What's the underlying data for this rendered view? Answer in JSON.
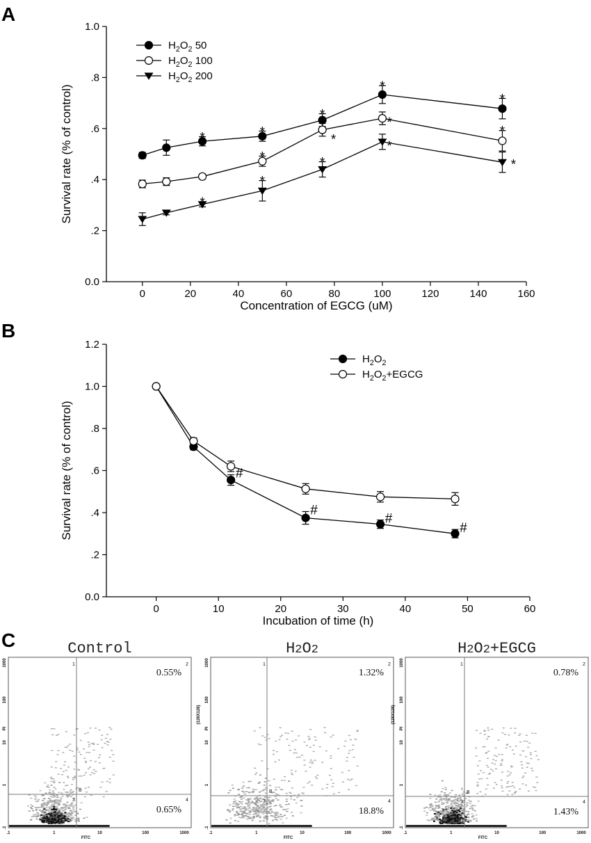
{
  "panels": {
    "a": "A",
    "b": "B",
    "c": "C"
  },
  "chart_data": [
    {
      "type": "line",
      "xlabel": "Concentration of EGCG (uM)",
      "ylabel": "Survival rate (% of control)",
      "xlim": [
        -15,
        160
      ],
      "ylim": [
        0,
        1.0
      ],
      "xticks": [
        0,
        20,
        40,
        60,
        80,
        100,
        120,
        140,
        160
      ],
      "xticklabels": [
        "0",
        "20",
        "40",
        "60",
        "80",
        "100",
        "120",
        "140",
        "160"
      ],
      "yticks": [
        0,
        0.2,
        0.4,
        0.6,
        0.8,
        1.0
      ],
      "yticklabels": [
        "0.0",
        ".2",
        ".4",
        ".6",
        ".8",
        "1.0"
      ],
      "legend": "top-left",
      "grid": false,
      "x": [
        0,
        10,
        25,
        50,
        75,
        100,
        150
      ],
      "series": [
        {
          "name_main": "H",
          "name_sub1": "2",
          "name_mid": "O",
          "name_sub2": "2",
          "name_tail": " 50",
          "marker": "filled-circle",
          "values": [
            0.495,
            0.525,
            0.55,
            0.57,
            0.633,
            0.733,
            0.678
          ],
          "err": [
            0.012,
            0.03,
            0.018,
            0.02,
            0.025,
            0.035,
            0.04
          ],
          "sig": [
            "",
            "",
            "*",
            "*",
            "*",
            "*",
            "*"
          ]
        },
        {
          "name_main": "H",
          "name_sub1": "2",
          "name_mid": "O",
          "name_sub2": "2",
          "name_tail": " 100",
          "marker": "open-circle",
          "values": [
            0.383,
            0.392,
            0.412,
            0.472,
            0.595,
            0.64,
            0.552
          ],
          "err": [
            0.015,
            0.015,
            0.01,
            0.02,
            0.025,
            0.025,
            0.04
          ],
          "sig": [
            "",
            "",
            "",
            "*",
            "*",
            "*",
            "*"
          ]
        },
        {
          "name_main": "H",
          "name_sub1": "2",
          "name_mid": "O",
          "name_sub2": "2",
          "name_tail": " 200",
          "marker": "filled-triangle-down",
          "values": [
            0.245,
            0.27,
            0.303,
            0.356,
            0.44,
            0.548,
            0.468
          ],
          "err": [
            0.025,
            0.008,
            0.01,
            0.04,
            0.03,
            0.03,
            0.04
          ],
          "sig": [
            "",
            "",
            "*",
            "*",
            "*",
            "*",
            "*"
          ]
        }
      ]
    },
    {
      "type": "line",
      "xlabel": "Incubation of time (h)",
      "ylabel": "Survival rate (% of control)",
      "xlim": [
        -8,
        60
      ],
      "ylim": [
        0,
        1.2
      ],
      "xticks": [
        0,
        10,
        20,
        30,
        40,
        50,
        60
      ],
      "xticklabels": [
        "0",
        "10",
        "20",
        "30",
        "40",
        "50",
        "60"
      ],
      "yticks": [
        0,
        0.2,
        0.4,
        0.6,
        0.8,
        1.0,
        1.2
      ],
      "yticklabels": [
        "0.0",
        ".2",
        ".4",
        ".6",
        ".8",
        "1.0",
        "1.2"
      ],
      "legend": "top-right",
      "grid": false,
      "x": [
        0,
        6,
        12,
        24,
        36,
        48
      ],
      "series": [
        {
          "name_main": "H",
          "name_sub1": "2",
          "name_mid": "O",
          "name_sub2": "2",
          "name_tail": "",
          "marker": "filled-circle",
          "values": [
            1.0,
            0.713,
            0.555,
            0.375,
            0.345,
            0.3
          ],
          "err": [
            0.0,
            0.015,
            0.025,
            0.03,
            0.02,
            0.02
          ],
          "sig": [
            "",
            "",
            "#",
            "#",
            "#",
            "#"
          ]
        },
        {
          "name_main": "H",
          "name_sub1": "2",
          "name_mid": "O",
          "name_sub2": "2",
          "name_tail": "+EGCG",
          "marker": "open-circle",
          "values": [
            1.0,
            0.74,
            0.62,
            0.513,
            0.475,
            0.465
          ],
          "err": [
            0.0,
            0.015,
            0.025,
            0.025,
            0.025,
            0.03
          ],
          "sig": [
            "",
            "",
            "",
            "",
            "",
            ""
          ]
        }
      ]
    }
  ],
  "flow": {
    "ticks": [
      ".1",
      "1",
      "10",
      "100",
      "1000"
    ],
    "xaxis_label": "FITC",
    "yaxis_label": "PI",
    "side_label": "(128X128)",
    "gate_label": "B",
    "quadrant_labels": [
      "1",
      "2",
      "3",
      "4"
    ],
    "panels": [
      {
        "title_main": "Control",
        "title_sub1": "",
        "title_mid": "",
        "title_sub2": "",
        "title_tail": "",
        "upper_right": "0.55%",
        "lower_right": "0.65%"
      },
      {
        "title_main": "H",
        "title_sub1": "2",
        "title_mid": "O",
        "title_sub2": "2",
        "title_tail": "",
        "upper_right": "1.32%",
        "lower_right": "18.8%"
      },
      {
        "title_main": "H",
        "title_sub1": "2",
        "title_mid": "O",
        "title_sub2": "2",
        "title_tail": "+EGCG",
        "upper_right": "0.78%",
        "lower_right": "1.43%"
      }
    ]
  }
}
